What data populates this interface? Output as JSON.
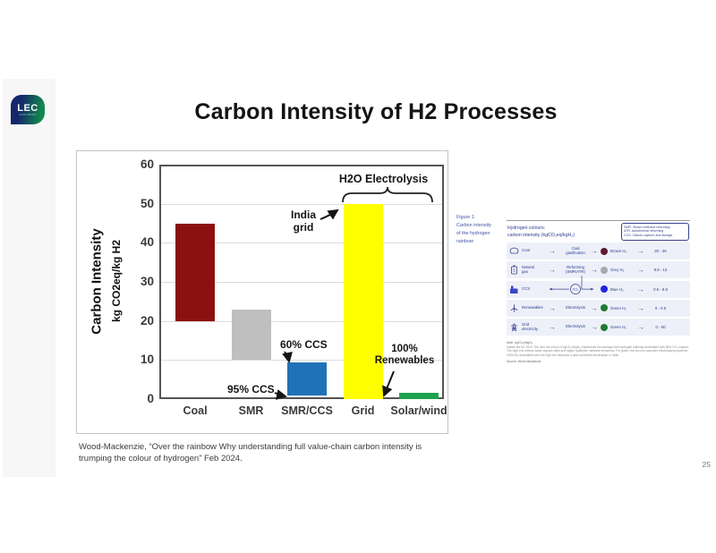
{
  "slide": {
    "title": "Carbon Intensity of H2 Processes",
    "citation": "Wood-Mackenzie, “Over the rainbow Why understanding full value-chain carbon intensity is trumping the colour of hydrogen” Feb 2024.",
    "page_number": "25"
  },
  "logo": {
    "text": "LEC",
    "subtext": "PARTNERS"
  },
  "chart_data": {
    "type": "bar",
    "title": "",
    "ylabel": "Carbon Intensity",
    "ylabel_sub": "kg CO2eq/kg H2",
    "ylim": [
      0,
      60
    ],
    "yticks": [
      0,
      10,
      20,
      30,
      40,
      50,
      60
    ],
    "grid": true,
    "categories": [
      "Coal",
      "SMR",
      "SMR/CCS",
      "Grid",
      "Solar/wind"
    ],
    "series": [
      {
        "name": "Carbon intensity range (kg CO2eq/kg H2)",
        "ranges": [
          [
            20,
            45
          ],
          [
            10,
            23
          ],
          [
            1,
            9.5
          ],
          [
            0,
            50
          ],
          [
            0,
            1.5
          ]
        ]
      }
    ],
    "bar_colors": [
      "#8B1111",
      "#BFBFBF",
      "#1F72B8",
      "#FFFF00",
      "#1FA24E"
    ]
  },
  "annotations": {
    "electrolysis": "H2O Electrolysis",
    "india_line1": "India",
    "india_line2": "grid",
    "ccs60": "60% CCS",
    "ccs95": "95% CCS",
    "renew_line1": "100%",
    "renew_line2": "Renewables"
  },
  "figure": {
    "caption": [
      "Figure 1:",
      "Carbon intensity",
      "of the hydrogen",
      "rainbow"
    ],
    "header_line1": "Hydrogen colours:",
    "header_line2": "carbon intensity (kgCO₂eq/kgH₂)",
    "legend": [
      "SMR: Steam methane reforming",
      "ATR: Autothermal reforming",
      "CCS: Carbon capture and storage"
    ],
    "rows": [
      {
        "icon": "coal-icon",
        "source": "Coal",
        "process": "Coal gasification",
        "dot_color": "#5C1A32",
        "product": "Brown H₂",
        "range": "20 - 26"
      },
      {
        "icon": "natural-gas-icon",
        "source": "Natural gas",
        "process": "Reforming (SMR/ATR)",
        "dot_color": "#A7A9AC",
        "product": "Grey H₂",
        "range": "9.8 - 13"
      },
      {
        "icon": "ccs-icon",
        "source": "CCS",
        "process": "CO₂",
        "dot_color": "#2323DF",
        "product": "Blue H₂",
        "range": "0.5 - 8.8"
      },
      {
        "icon": "renewables-icon",
        "source": "Renewables",
        "process": "Electrolysis",
        "dot_color": "#1E7A33",
        "product": "Green H₂",
        "range": "0 - 0.5"
      },
      {
        "icon": "grid-electricity-icon",
        "source": "Grid electricity",
        "process": "Electrolysis",
        "dot_color": "#1E7A33",
        "product": "Green H₂",
        "range": "0 - 50"
      }
    ],
    "note_label": "Note: kgCO₂e/kgH₂",
    "note": "Values are for 2023. The blue low end (0.5 kgCO₂e/kgH₂) represents the average blue hydrogen intensity achievable with 98% CO₂ capture. The high end reflects lower capture rates and higher upstream methane emissions. For green, the low end assumes electrolysers powered 100% by renewables and the high end assumes a grid-connected electrolyser in India.",
    "source": "Source: Wood Mackenzie"
  }
}
